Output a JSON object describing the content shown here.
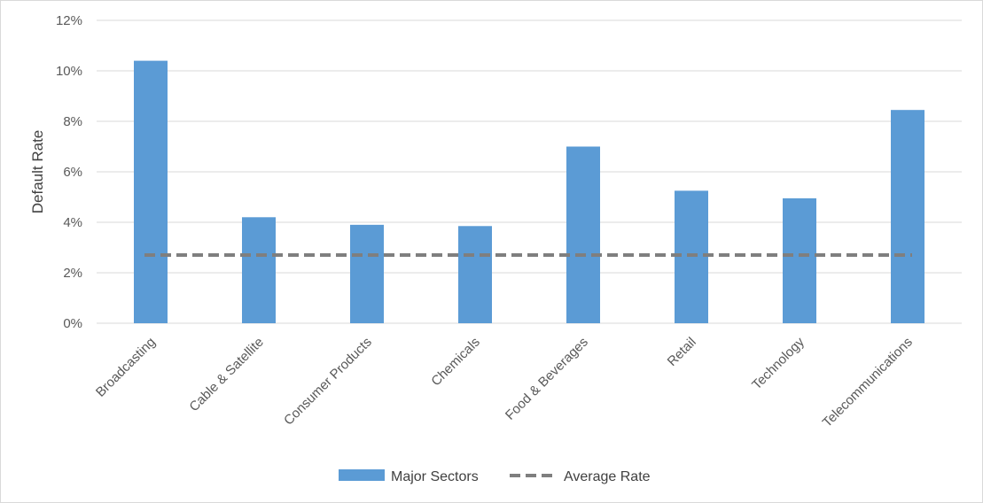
{
  "chart_data": {
    "type": "bar",
    "categories": [
      "Broadcasting",
      "Cable & Satellite",
      "Consumer Products",
      "Chemicals",
      "Food & Beverages",
      "Retail",
      "Technology",
      "Telecommunications"
    ],
    "series": [
      {
        "name": "Major Sectors",
        "type": "bar",
        "values": [
          10.4,
          4.2,
          3.9,
          3.85,
          7.0,
          5.25,
          4.95,
          8.45
        ],
        "color": "#5b9bd5"
      },
      {
        "name": "Average Rate",
        "type": "line",
        "style": "dashed",
        "values": [
          2.7,
          2.7,
          2.7,
          2.7,
          2.7,
          2.7,
          2.7,
          2.7
        ],
        "color": "#7f7f7f"
      }
    ],
    "ylabel": "Default Rate",
    "xlabel": "",
    "ylim": [
      0,
      12
    ],
    "y_ticks": [
      {
        "value": 0,
        "label": "0%"
      },
      {
        "value": 2,
        "label": "2%"
      },
      {
        "value": 4,
        "label": "4%"
      },
      {
        "value": 6,
        "label": "6%"
      },
      {
        "value": 8,
        "label": "8%"
      },
      {
        "value": 10,
        "label": "10%"
      },
      {
        "value": 12,
        "label": "12%"
      }
    ],
    "grid": true,
    "legend_position": "bottom"
  }
}
